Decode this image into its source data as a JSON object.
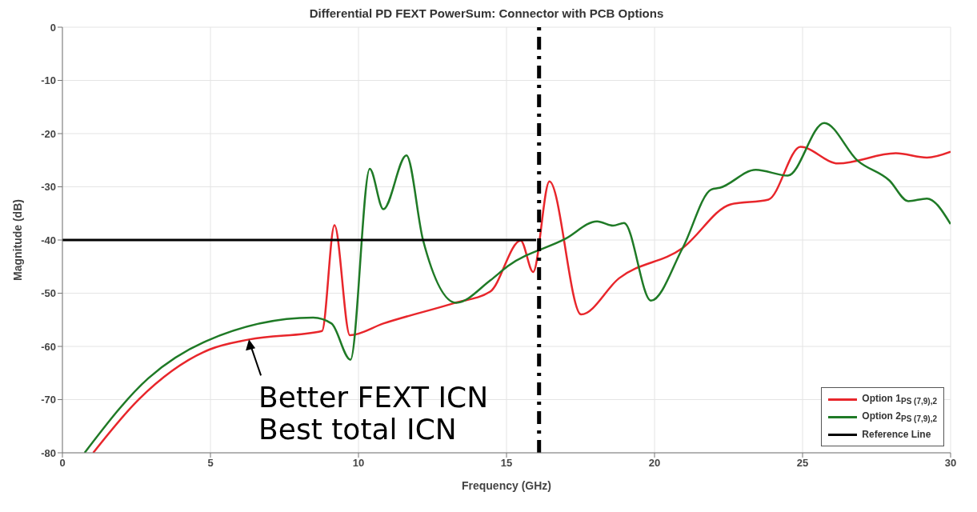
{
  "chart_data": {
    "type": "line",
    "title": "Differential PD FEXT PowerSum: Connector with PCB Options",
    "xlabel": "Frequency (GHz)",
    "ylabel": "Magnitude (dB)",
    "xlim": [
      0,
      30
    ],
    "xticks": [
      0,
      5,
      10,
      15,
      20,
      25,
      30
    ],
    "ylim": [
      -80,
      0
    ],
    "yticks": [
      -80,
      -70,
      -60,
      -50,
      -40,
      -30,
      -20,
      -10,
      0
    ],
    "grid": true,
    "legend": "bottom right",
    "marker": "none",
    "line_style": "solid",
    "series": [
      {
        "name": "Option 1$_{PS (7,9),2}$",
        "color": "#e8262b",
        "x": [
          1.04,
          2.59,
          4.96,
          6.3,
          8.77,
          9.19,
          9.71,
          10.84,
          13.21,
          14.45,
          15.48,
          15.9,
          16.45,
          17.52,
          18.8,
          20.95,
          22.57,
          23.85,
          24.93,
          26.2,
          28.15,
          29.2,
          30
        ],
        "values": [
          -80,
          -69.9,
          -60.6,
          -58.7,
          -57.1,
          -37.2,
          -57.9,
          -55.7,
          -51.9,
          -49.7,
          -40.1,
          -46,
          -29,
          -54,
          -47.2,
          -41.5,
          -33.3,
          -32.4,
          -22.5,
          -25.6,
          -23.7,
          -24.5,
          -23.4
        ]
      },
      {
        "name": "Option 2$_{PS (7,9),2}$",
        "color": "#1f7a26",
        "x": [
          0.75,
          2.9,
          4.86,
          8.47,
          9.09,
          9.73,
          10.38,
          10.84,
          11.62,
          12.18,
          13.3,
          14.45,
          15.05,
          16.98,
          18.06,
          18.6,
          18.97,
          19.88,
          20.95,
          21.92,
          22.2,
          23.42,
          24.5,
          25.73,
          26.86,
          27.93,
          28.57,
          29.2,
          30
        ],
        "values": [
          -80,
          -66,
          -59,
          -54.6,
          -55.7,
          -62.5,
          -26.6,
          -34.2,
          -24.1,
          -40,
          -51.8,
          -47.6,
          -44.9,
          -39.8,
          -36.5,
          -37.3,
          -36.8,
          -51.4,
          -41.5,
          -30.5,
          -30.2,
          -26.8,
          -27.9,
          -18,
          -25.1,
          -28.8,
          -32.7,
          -32.2,
          -37
        ]
      },
      {
        "name": "Reference Line",
        "color": "#000000",
        "x": [
          0,
          16
        ],
        "values": [
          -40,
          -40
        ]
      }
    ],
    "ref_lines": [
      {
        "axis": "x",
        "value": 16.1,
        "color": "#000000",
        "line_style": "dashed"
      }
    ],
    "annotations": [
      {
        "text": "Better FEXT ICN",
        "x": 6.3,
        "y": -58.7
      },
      "Best total ICN"
    ]
  }
}
